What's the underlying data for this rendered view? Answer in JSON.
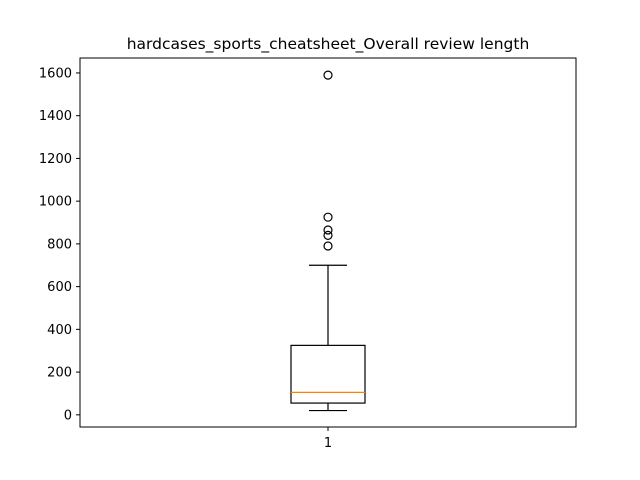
{
  "chart_data": {
    "type": "boxplot",
    "title": "hardcases_sports_cheatsheet_Overall review length",
    "xlabel": "",
    "ylabel": "",
    "categories": [
      "1"
    ],
    "ylim": [
      -57,
      1670
    ],
    "yticks": [
      0,
      200,
      400,
      600,
      800,
      1000,
      1200,
      1400,
      1600
    ],
    "ytick_labels": [
      "0",
      "200",
      "400",
      "600",
      "800",
      "1000",
      "1200",
      "1400",
      "1600"
    ],
    "boxes": [
      {
        "category": "1",
        "whisker_low": 20,
        "q1": 55,
        "median": 105,
        "q3": 325,
        "whisker_high": 700,
        "outliers": [
          790,
          840,
          865,
          925,
          1590
        ]
      }
    ],
    "grid": false,
    "colors": {
      "box": "#000000",
      "median": "#ff7f0e",
      "outlier": "#000000"
    }
  }
}
